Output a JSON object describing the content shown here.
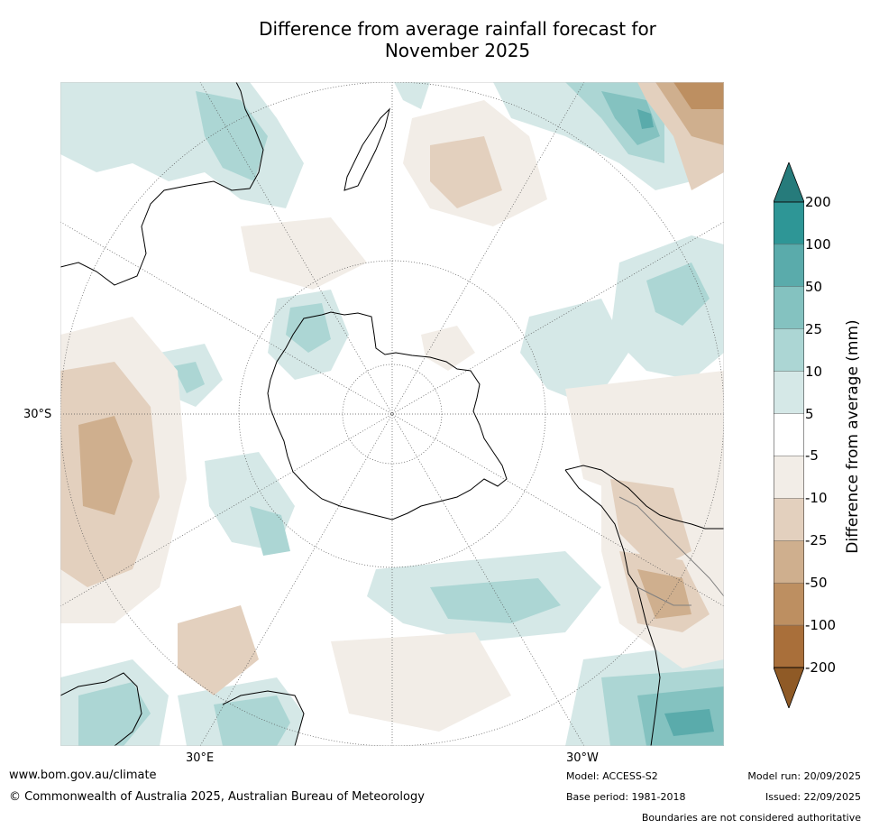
{
  "title": {
    "line1": "Difference from average rainfall forecast for",
    "line2": "November 2025"
  },
  "map": {
    "projection": "south-polar-stereographic",
    "lat_label": "30°S",
    "lon_labels": [
      "30°E",
      "30°W"
    ],
    "colors": {
      "ocean": "#ffffff",
      "coastline": "#000000",
      "boundary": "#808080",
      "graticule": "#555555"
    }
  },
  "colorbar": {
    "title": "Difference from average (mm)",
    "levels": [
      "200",
      "100",
      "50",
      "25",
      "10",
      "5",
      "-5",
      "-10",
      "-25",
      "-50",
      "-100",
      "-200"
    ],
    "colors": [
      "#267b7b",
      "#2e9696",
      "#5aabab",
      "#84c2c0",
      "#acd6d4",
      "#d5e8e7",
      "#ffffff",
      "#f2ede7",
      "#e3d0be",
      "#cfaf8e",
      "#bd8f61",
      "#a96f3a",
      "#8f5a26"
    ]
  },
  "footer": {
    "website": "www.bom.gov.au/climate",
    "copyright": "© Commonwealth of Australia 2025, Australian Bureau of Meteorology",
    "model": "Model: ACCESS-S2",
    "base_period": "Base period: 1981-2018",
    "model_run": "Model run: 20/09/2025",
    "issued": "Issued: 22/09/2025",
    "disclaimer": "Boundaries are not considered authoritative"
  }
}
